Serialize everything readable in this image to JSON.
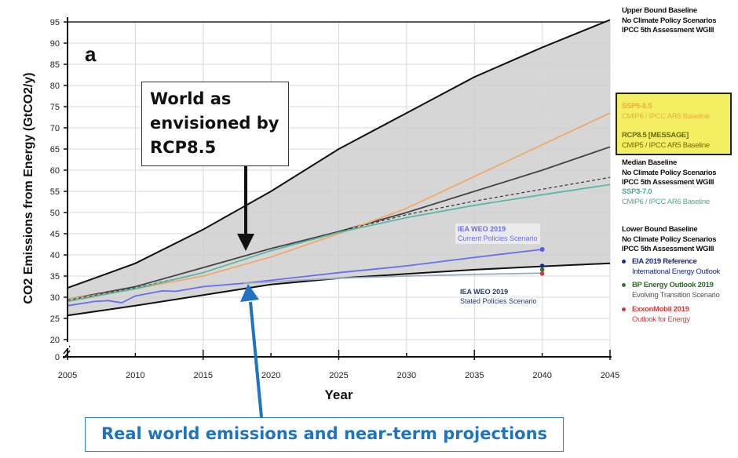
{
  "chart_data": {
    "type": "line",
    "panel_label": "a",
    "xlabel": "Year",
    "ylabel": "CO2 Emissions from Energy (GtCO2/y)",
    "xlim": [
      2005,
      2045
    ],
    "ylim": [
      0,
      95
    ],
    "y_axis_break": [
      0,
      20
    ],
    "xticks": [
      2005,
      2010,
      2015,
      2020,
      2025,
      2030,
      2035,
      2040,
      2045
    ],
    "yticks": [
      0,
      20,
      25,
      30,
      35,
      40,
      45,
      50,
      55,
      60,
      65,
      70,
      75,
      80,
      85,
      90,
      95
    ],
    "grid": true,
    "band": {
      "name": "No Climate Policy Scenarios range",
      "x": [
        2005,
        2010,
        2015,
        2020,
        2025,
        2030,
        2035,
        2040,
        2045
      ],
      "upper": [
        32.2,
        38,
        46,
        55,
        65,
        73.5,
        82,
        89,
        95.5
      ],
      "lower": [
        25.7,
        28,
        30.5,
        33,
        34.5,
        35.5,
        36.5,
        37.3,
        38
      ]
    },
    "series": [
      {
        "name": "RCP8.5 [MESSAGE]",
        "color": "#444444",
        "x": [
          2005,
          2010,
          2015,
          2020,
          2025,
          2030,
          2035,
          2040,
          2045
        ],
        "y": [
          29.5,
          32.5,
          37,
          41.5,
          45.5,
          50,
          55,
          60,
          65.5
        ]
      },
      {
        "name": "SSP5-8.5",
        "color": "#f0a868",
        "x": [
          2005,
          2010,
          2015,
          2020,
          2025,
          2030,
          2035,
          2040,
          2045
        ],
        "y": [
          29.5,
          32,
          35,
          39.5,
          45,
          51,
          58.5,
          66,
          73.5
        ]
      },
      {
        "name": "Median Baseline",
        "color": "#333333",
        "dashed": true,
        "x": [
          2005,
          2010,
          2015,
          2020,
          2025,
          2030,
          2035,
          2040,
          2045
        ],
        "y": [
          29.3,
          32.2,
          35.8,
          41,
          45.5,
          49.5,
          52.7,
          55.5,
          58.3
        ]
      },
      {
        "name": "SSP3-7.0",
        "color": "#5bb8a8",
        "x": [
          2005,
          2010,
          2015,
          2020,
          2025,
          2030,
          2035,
          2040,
          2045
        ],
        "y": [
          29,
          32,
          35.8,
          41,
          45.3,
          48.8,
          51.7,
          54.2,
          56.6
        ]
      },
      {
        "name": "IEA WEO 2019 Current Policies Scenario",
        "color": "#6b6df0",
        "x": [
          2005,
          2007,
          2008,
          2009,
          2010,
          2012,
          2013,
          2015,
          2018,
          2020,
          2025,
          2030,
          2035,
          2040
        ],
        "y": [
          28,
          29,
          29.2,
          28.7,
          30.3,
          31.5,
          31.4,
          32.5,
          33.3,
          34,
          35.8,
          37.4,
          39.4,
          41.3
        ]
      },
      {
        "name": "IEA WEO 2019 Stated Policies Scenario",
        "color": "#9aa8c0",
        "x": [
          2018,
          2025,
          2030,
          2035,
          2040
        ],
        "y": [
          33.3,
          34.5,
          35,
          35.4,
          35.7
        ]
      }
    ],
    "points": [
      {
        "name": "EIA 2019 Reference",
        "x": 2040,
        "y": 37.4,
        "color": "#1a2a8a"
      },
      {
        "name": "BP Energy Outlook 2019",
        "x": 2040,
        "y": 36.5,
        "color": "#2f7a2a"
      },
      {
        "name": "ExxonMobil 2019",
        "x": 2040,
        "y": 35.6,
        "color": "#d33a3a"
      }
    ]
  },
  "labels": {
    "iea_current_title": "IEA WEO 2019",
    "iea_current_sub": "Current Policies Scenario",
    "iea_stated_title": "IEA WEO 2019",
    "iea_stated_sub": "Stated Policies Scenario"
  },
  "legend": {
    "upper": [
      "Upper Bound Baseline",
      "No Climate Policy Scenarios",
      "IPCC 5th Assessment WGIII"
    ],
    "ssp585": {
      "title": "SSP5-8.5",
      "sub": "CMIP6 / IPCC AR6 Baseline"
    },
    "rcp85": {
      "title": "RCP8.5 [MESSAGE]",
      "sub": "CMIP5 / IPCC AR5 Baseline"
    },
    "median": [
      "Median Baseline",
      "No Climate Policy Scenarios",
      "IPCC 5th Assessment WGIII"
    ],
    "ssp370": {
      "title": "SSP3-7.0",
      "sub": "CMIP6 / IPCC AR6 Baseline"
    },
    "lower": [
      "Lower Bound Baseline",
      "No Climate Policy Scenarios",
      "IPCC 5th Assessment WGIII"
    ],
    "eia": {
      "title": "EIA 2019 Reference",
      "sub": "International Energy Outlook"
    },
    "bp": {
      "title": "BP Energy Outlook 2019",
      "sub": "Evolving Transition Scenario"
    },
    "exxon": {
      "title": "ExxonMobil 2019",
      "sub": "Outlook for Energy"
    }
  },
  "annotations": {
    "rcp_box": "World as envisioned by RCP8.5",
    "real_box": "Real world emissions and near-term projections"
  }
}
